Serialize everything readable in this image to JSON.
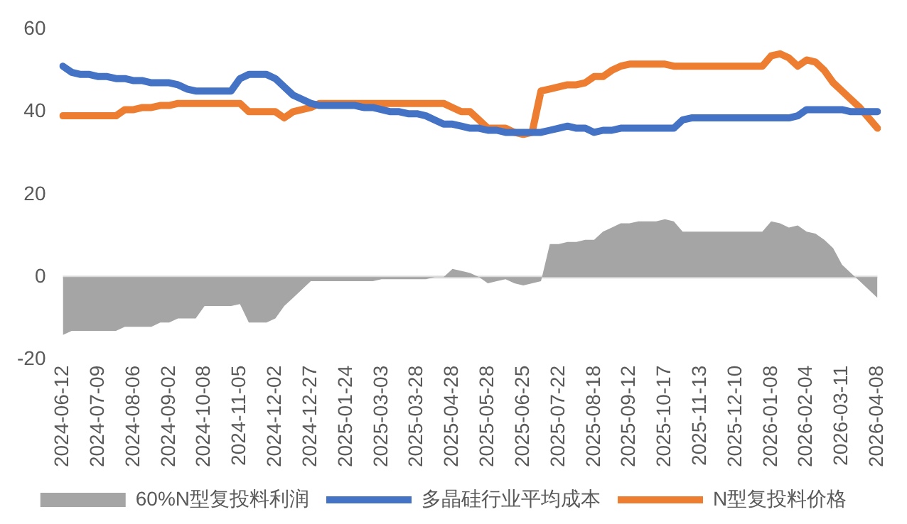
{
  "chart_data": {
    "type": "line",
    "categories": [
      "2024-06-12",
      null,
      null,
      null,
      "2024-07-09",
      null,
      null,
      null,
      "2024-08-06",
      null,
      null,
      null,
      "2024-09-02",
      null,
      null,
      null,
      "2024-10-08",
      null,
      null,
      null,
      "2024-11-05",
      null,
      null,
      null,
      "2024-12-02",
      null,
      null,
      null,
      "2024-12-27",
      null,
      null,
      null,
      "2025-01-24",
      null,
      null,
      null,
      "2025-03-03",
      null,
      null,
      null,
      "2025-03-28",
      null,
      null,
      null,
      "2025-04-28",
      null,
      null,
      null,
      "2025-05-28",
      null,
      null,
      null,
      "2025-06-25",
      null,
      null,
      null,
      "2025-07-22",
      null,
      null,
      null,
      "2025-08-18",
      null,
      null,
      null,
      "2025-09-12",
      null,
      null,
      null,
      "2025-10-17",
      null,
      null,
      null,
      "2025-11-13",
      null,
      null,
      null,
      "2025-12-10",
      null,
      null,
      null,
      "2026-01-08",
      null,
      null,
      null,
      "2026-02-04",
      null,
      null,
      null,
      "2026-03-11",
      null,
      null,
      null,
      "2026-04-08"
    ],
    "ylim": [
      -20,
      60
    ],
    "yticks": [
      -20,
      0,
      20,
      40,
      60
    ],
    "grid": false,
    "legend": "bottom",
    "marker": "none",
    "ref_lines": [
      {
        "axis": "y",
        "value": 0,
        "color": "#d9d9d9"
      }
    ],
    "series": [
      {
        "name": "60%N型复投料利润",
        "type": "area",
        "color": "#a5a5a5",
        "values": [
          -14,
          -13,
          -13,
          -13,
          -13,
          -13,
          -13,
          -12,
          -12,
          -12,
          -12,
          -11,
          -11,
          -10,
          -10,
          -10,
          -7,
          -7,
          -7,
          -7,
          -6.5,
          -11,
          -11,
          -11,
          -10,
          -7,
          -5,
          -3,
          -1,
          -1,
          -1,
          -1,
          -1,
          -1,
          -1,
          -1,
          -0.5,
          -0.5,
          -0.5,
          -0.5,
          -0.5,
          -0.5,
          0,
          0,
          2,
          1.5,
          1,
          0,
          -1.5,
          -1,
          -0.5,
          -1.5,
          -2,
          -1.5,
          -1,
          8,
          8,
          8.5,
          8.5,
          9,
          9,
          11,
          12,
          13,
          13,
          13.5,
          13.5,
          13.5,
          14,
          13.5,
          11,
          11,
          11,
          11,
          11,
          11,
          11,
          11,
          11,
          11,
          13.5,
          13,
          12,
          12.5,
          11,
          10.5,
          9,
          7,
          3,
          1,
          -1,
          -3,
          -5
        ]
      },
      {
        "name": "多晶硅行业平均成本",
        "color": "#4472c4",
        "values": [
          51,
          49.5,
          49,
          49,
          48.5,
          48.5,
          48,
          48,
          47.5,
          47.5,
          47,
          47,
          47,
          46.5,
          45.5,
          45,
          45,
          45,
          45,
          45,
          48,
          49,
          49,
          49,
          48,
          46,
          44,
          43,
          42,
          41.5,
          41.5,
          41.5,
          41.5,
          41.5,
          41,
          41,
          40.5,
          40,
          40,
          39.5,
          39.5,
          39,
          38,
          37,
          37,
          36.5,
          36,
          36,
          35.5,
          35.5,
          35,
          35,
          35,
          35,
          35,
          35.5,
          36,
          36.5,
          36,
          36,
          35,
          35.5,
          35.5,
          36,
          36,
          36,
          36,
          36,
          36,
          36,
          38,
          38.5,
          38.5,
          38.5,
          38.5,
          38.5,
          38.5,
          38.5,
          38.5,
          38.5,
          38.5,
          38.5,
          38.5,
          39,
          40.5,
          40.5,
          40.5,
          40.5,
          40.5,
          40,
          40,
          40,
          40
        ]
      },
      {
        "name": "N型复投料价格",
        "color": "#ed7d31",
        "values": [
          39,
          39,
          39,
          39,
          39,
          39,
          39,
          40.5,
          40.5,
          41,
          41,
          41.5,
          41.5,
          42,
          42,
          42,
          42,
          42,
          42,
          42,
          42,
          40,
          40,
          40,
          40,
          38.5,
          40,
          40.5,
          41,
          42,
          42,
          42,
          42,
          42,
          42,
          42,
          42,
          42,
          42,
          42,
          42,
          42,
          42,
          42,
          41,
          40,
          40,
          38,
          36,
          36,
          36,
          35,
          34.5,
          35,
          45,
          45.5,
          46,
          46.5,
          46.5,
          47,
          48.5,
          48.5,
          50,
          51,
          51.5,
          51.5,
          51.5,
          51.5,
          51.5,
          51,
          51,
          51,
          51,
          51,
          51,
          51,
          51,
          51,
          51,
          51,
          53.5,
          54,
          53,
          51,
          52.5,
          52,
          50,
          47,
          45,
          43,
          41,
          38.5,
          36
        ]
      }
    ]
  }
}
